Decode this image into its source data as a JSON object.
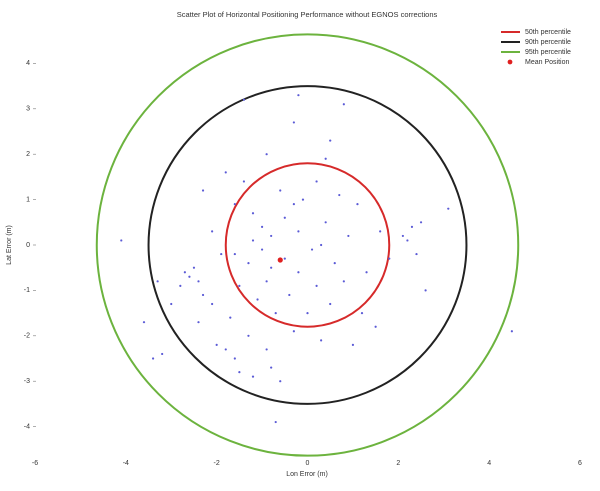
{
  "chart_data": {
    "type": "scatter",
    "title": "Scatter Plot of Horizontal Positioning Performance without EGNOS corrections",
    "x_label": "Lon Error (m)",
    "y_label": "Lat Error (m)",
    "xlim": [
      -6,
      6
    ],
    "ylim": [
      -5,
      5
    ],
    "xticks": [
      -6,
      -4,
      -2,
      0,
      2,
      4,
      6
    ],
    "yticks": [
      -4,
      -3,
      -2,
      -1,
      0,
      1,
      2,
      3,
      4
    ],
    "legend_position": "upper right",
    "circles": [
      {
        "name": "50th percentile",
        "color": "#d62a2a",
        "radius": 1.8
      },
      {
        "name": "90th percentile",
        "color": "#222222",
        "radius": 3.5
      },
      {
        "name": "95th percentile",
        "color": "#6cb33e",
        "radius": 4.64
      }
    ],
    "series": [
      {
        "color": "#5b5bd6",
        "x": [
          -4.1,
          -3.4,
          -3.2,
          -3,
          -2.8,
          -2.6,
          -2.5,
          -2.7,
          -2.4,
          -2.3,
          -2.1,
          -2,
          -1.8,
          -1.6,
          -1.5,
          -1.2,
          -0.8,
          -0.6,
          0.3,
          1.2,
          1.5,
          2.3,
          2.2,
          2.4,
          2.5,
          2.1,
          3.1,
          0.8,
          -0.2,
          -1.4,
          -0.3,
          0.4,
          -2.3,
          -1.8,
          -1.6,
          -1.2,
          -1,
          -0.8,
          -0.5,
          -0.2,
          0.1,
          0.4,
          0.6,
          0.9,
          1.3,
          1.6,
          -1.3,
          -1.5,
          -1.7,
          -1.1,
          -0.9,
          -0.7,
          -0.4,
          -0.2,
          0.2,
          0.5,
          -0.3,
          0,
          -1.9,
          -2.1,
          -0.6,
          -0.1,
          0.7,
          1.1,
          -1.4,
          0.3,
          -0.5,
          -0.8,
          -1,
          -1.2,
          0.5,
          -0.9,
          -3.6,
          -3.3,
          4.5,
          -0.7,
          2.6,
          1.8,
          -0.3,
          0.2,
          -1.6,
          -2.4,
          -1.3,
          -0.9,
          0.8,
          1
        ],
        "y": [
          0.1,
          -2.5,
          -2.4,
          -1.3,
          -0.9,
          -0.7,
          -0.5,
          -0.6,
          -0.8,
          -1.1,
          -1.3,
          -2.2,
          -2.3,
          -2.5,
          -2.8,
          -2.9,
          -2.7,
          -3,
          -2.1,
          -1.5,
          -1.8,
          0.4,
          0.1,
          -0.2,
          0.5,
          0.2,
          0.8,
          3.1,
          3.3,
          3.2,
          2.7,
          1.9,
          1.2,
          1.6,
          0.9,
          0.7,
          0.4,
          0.2,
          0.6,
          0.3,
          -0.1,
          0.5,
          -0.4,
          0.2,
          -0.6,
          0.3,
          -0.4,
          -0.9,
          -1.6,
          -1.2,
          -0.8,
          -1.5,
          -1.1,
          -0.6,
          -0.9,
          -1.3,
          -1.9,
          -1.5,
          -0.2,
          0.3,
          1.2,
          1,
          1.1,
          0.9,
          1.4,
          0,
          -0.3,
          -0.5,
          -0.1,
          0.1,
          2.3,
          2,
          -1.7,
          -0.8,
          -1.9,
          -3.9,
          -1,
          -0.3,
          0.9,
          1.4,
          -0.2,
          -1.7,
          -2,
          -2.3,
          -0.8,
          -2.2
        ]
      },
      {
        "name": "Mean Position",
        "color": "#e02020",
        "x": [
          -0.6
        ],
        "y": [
          -0.33
        ]
      }
    ]
  }
}
